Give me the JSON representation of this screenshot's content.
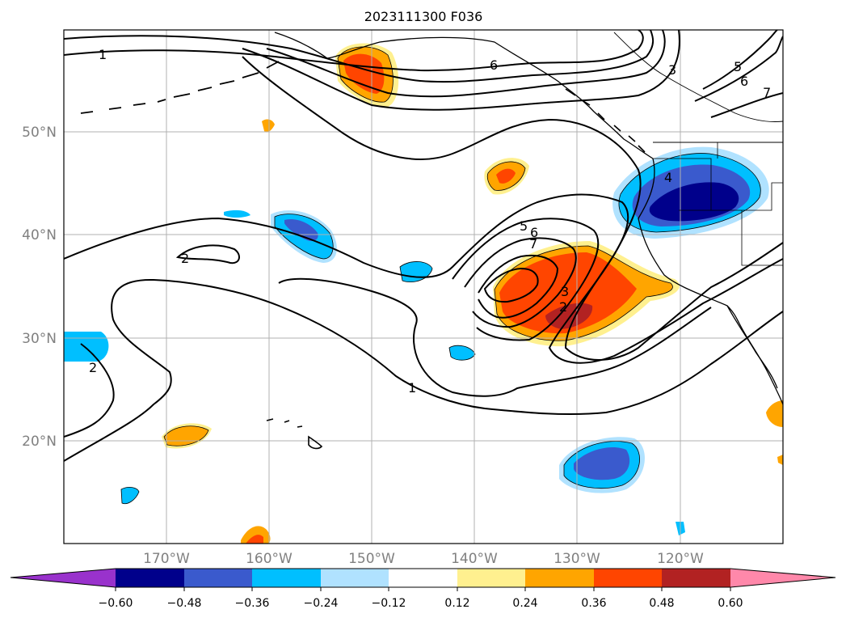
{
  "title": "2023111300 F036",
  "map": {
    "lat_ticks": [
      "50°N",
      "40°N",
      "30°N",
      "20°N"
    ],
    "lon_ticks": [
      "170°W",
      "160°W",
      "150°W",
      "140°W",
      "130°W",
      "120°W"
    ],
    "tick_label_color": "#808080",
    "grid": true
  },
  "contour_labels": [
    "1",
    "2",
    "6",
    "3",
    "5",
    "6",
    "7",
    "4",
    "5",
    "6",
    "7",
    "3",
    "2",
    "2",
    "1"
  ],
  "colorbar": {
    "tick_labels": [
      "−0.60",
      "−0.48",
      "−0.36",
      "−0.24",
      "−0.12",
      "0.12",
      "0.24",
      "0.36",
      "0.48",
      "0.60"
    ],
    "colors": [
      "#9932cc",
      "#00008b",
      "#3a5acd",
      "#00bfff",
      "#b0e2ff",
      "#ffffff",
      "#fff08f",
      "#ffa500",
      "#ff4500",
      "#b22222",
      "#ff88aa"
    ]
  }
}
